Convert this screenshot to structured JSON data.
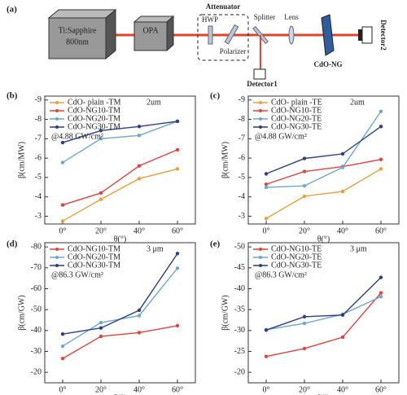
{
  "diagram": {
    "label": "(a)",
    "laser": "Ti:Sapphire",
    "wavelength": "800nm",
    "opa": "OPA",
    "attenuator": "Attenuator",
    "hwp": "HWP",
    "polarizer": "Polarizer",
    "splitter": "Splitter",
    "lens": "Lens",
    "sample": "CdO-NG",
    "detector1": "Detector1",
    "detector2": "Detector2"
  },
  "chart_data": [
    {
      "type": "line",
      "panel": "(b)",
      "x_label": "θ(°)",
      "y_label": "β(cm/MW)",
      "annotations": [
        "2um",
        "@4.88 GW/cm²"
      ],
      "categories": [
        "0°",
        "20°",
        "40°",
        "60°"
      ],
      "ylim": [
        -2.6,
        -9.2
      ],
      "yticks": [
        -9,
        -8,
        -7,
        -6,
        -5,
        -4,
        -3
      ],
      "series": [
        {
          "name": "CdO- plain -TM",
          "color": "#e8a13a",
          "values": [
            -2.75,
            -3.87,
            -4.94,
            -5.44
          ]
        },
        {
          "name": "CdO-NG10-TM",
          "color": "#e5423a",
          "values": [
            -3.58,
            -4.2,
            -5.6,
            -6.43
          ]
        },
        {
          "name": "CdO-NG20-TM",
          "color": "#6aa6d8",
          "values": [
            -5.77,
            -7.0,
            -7.17,
            -7.9
          ]
        },
        {
          "name": "CdO-NG30-TM",
          "color": "#2c3e8a",
          "values": [
            -6.8,
            -7.42,
            -7.63,
            -7.9
          ]
        }
      ]
    },
    {
      "type": "line",
      "panel": "(c)",
      "x_label": "θ(°)",
      "y_label": "β(cm/MW)",
      "annotations": [
        "2um",
        "@4.88 GW/cm²"
      ],
      "categories": [
        "0°",
        "20°",
        "40°",
        "60°"
      ],
      "ylim": [
        -2.6,
        -9.2
      ],
      "yticks": [
        -9,
        -8,
        -7,
        -6,
        -5,
        -4,
        -3
      ],
      "series": [
        {
          "name": "CdO- plain -TE",
          "color": "#e8a13a",
          "values": [
            -2.88,
            -4.03,
            -4.28,
            -5.44
          ]
        },
        {
          "name": "CdO-NG10-TE",
          "color": "#e5423a",
          "values": [
            -4.65,
            -5.31,
            -5.56,
            -5.93
          ]
        },
        {
          "name": "CdO-NG20-TE",
          "color": "#6aa6d8",
          "values": [
            -4.49,
            -4.57,
            -5.52,
            -8.41
          ]
        },
        {
          "name": "CdO-NG30-TE",
          "color": "#2c3e8a",
          "values": [
            -5.19,
            -5.98,
            -6.22,
            -7.63
          ]
        }
      ]
    },
    {
      "type": "line",
      "panel": "(d)",
      "x_label": "θ(°)",
      "y_label": "β(cm/GW)",
      "annotations": [
        "3 μm",
        "@86.3 GW/cm²"
      ],
      "categories": [
        "0°",
        "20°",
        "40°",
        "60°"
      ],
      "ylim": [
        -15,
        -82
      ],
      "yticks": [
        -80,
        -70,
        -60,
        -50,
        -40,
        -30,
        -20
      ],
      "series": [
        {
          "name": "CdO-NG10-TM",
          "color": "#e5423a",
          "values": [
            -26.6,
            -37.2,
            -39,
            -42.3
          ]
        },
        {
          "name": "CdO-NG20-TM",
          "color": "#6aa6d8",
          "values": [
            -32.5,
            -43.8,
            -47.1,
            -69.8
          ]
        },
        {
          "name": "CdO-NG30-TM",
          "color": "#2c3e8a",
          "values": [
            -38.3,
            -41.2,
            -49.7,
            -76.8
          ]
        }
      ]
    },
    {
      "type": "line",
      "panel": "(e)",
      "x_label": "θ(°)",
      "y_label": "β(cm/GW)",
      "annotations": [
        "3 μm",
        "@86.3 GW/cm²"
      ],
      "categories": [
        "0°",
        "20°",
        "40°",
        "60°"
      ],
      "ylim": [
        -17.5,
        -51
      ],
      "yticks": [
        -50,
        -45,
        -40,
        -35,
        -30,
        -25,
        -20
      ],
      "series": [
        {
          "name": "CdO-NG10-TE",
          "color": "#e5423a",
          "values": [
            -23.8,
            -25.7,
            -28.4,
            -39
          ]
        },
        {
          "name": "CdO-NG20-TE",
          "color": "#6aa6d8",
          "values": [
            -30.2,
            -31.7,
            -33.9,
            -38.1
          ]
        },
        {
          "name": "CdO-NG30-TE",
          "color": "#2c3e8a",
          "values": [
            -30.1,
            -33.3,
            -33.7,
            -42.7
          ]
        }
      ]
    }
  ]
}
